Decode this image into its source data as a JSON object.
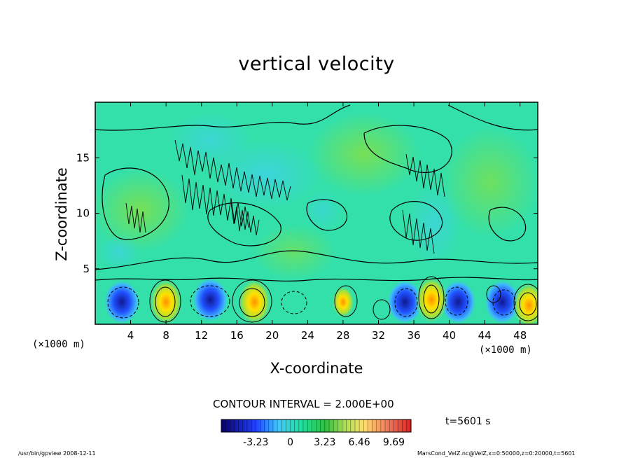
{
  "chart_data": {
    "type": "heatmap",
    "title": "vertical velocity",
    "xlabel": "X-coordinate",
    "ylabel": "Z-coordinate",
    "x_unit": "(×1000 m)",
    "xlim": [
      0,
      50
    ],
    "ylim": [
      0,
      20
    ],
    "x_ticks": [
      "4",
      "8",
      "12",
      "16",
      "20",
      "24",
      "28",
      "32",
      "36",
      "40",
      "44",
      "48"
    ],
    "y_ticks": [
      "5",
      "10",
      "15"
    ],
    "contour_interval": "CONTOUR INTERVAL = 2.000E+00",
    "time": "t=5601 s",
    "colorbar": {
      "ticks": [
        "-3.23",
        "0",
        "3.23",
        "6.46",
        "9.69"
      ],
      "tick_values": [
        -3.23,
        0,
        3.23,
        6.46,
        9.69
      ],
      "range": [
        -6.46,
        11.3
      ]
    },
    "updraft_cores": [
      {
        "x": 8,
        "z": 2,
        "w": 9.5
      },
      {
        "x": 18,
        "z": 2,
        "w": 9.5
      },
      {
        "x": 28,
        "z": 2,
        "w": 6.5
      },
      {
        "x": 38,
        "z": 2.2,
        "w": 9.5
      },
      {
        "x": 49,
        "z": 1.7,
        "w": 9.5
      }
    ],
    "downdraft_cores": [
      {
        "x": 3,
        "z": 2,
        "w": -3.23
      },
      {
        "x": 13,
        "z": 2.2,
        "w": -3.23
      },
      {
        "x": 35,
        "z": 2,
        "w": -3.23
      },
      {
        "x": 41,
        "z": 2,
        "w": -3.23
      },
      {
        "x": 46,
        "z": 2,
        "w": -3.23
      }
    ]
  },
  "colors": {
    "background_field": "#33e0aa",
    "updraft": "#ffee00",
    "downdraft": "#1020c0",
    "contour": "#000000"
  },
  "footer_left": "/usr/bin/gpview   2008-12-11",
  "footer_right": "MarsCond_VelZ.nc@VelZ,x=0:50000,z=0:20000,t=5601"
}
